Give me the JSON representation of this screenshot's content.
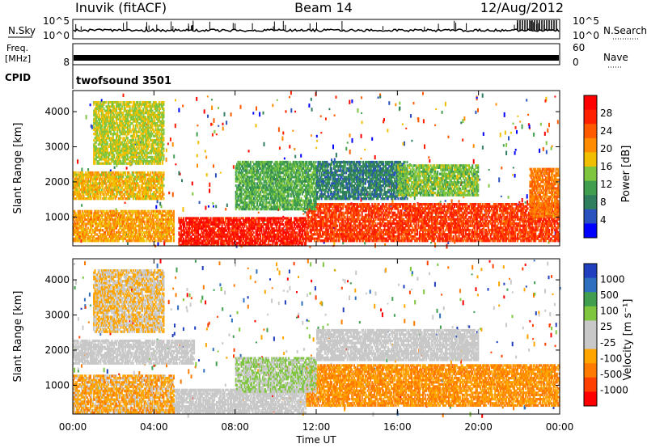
{
  "header": {
    "station": "Inuvik (fitACF)",
    "beam": "Beam 14",
    "date": "12/Aug/2012"
  },
  "top_panels": {
    "nsky_label": "N.Sky",
    "nsky_ticks": [
      "10^5",
      "10^0"
    ],
    "nsearch_label": "N.Search",
    "nsearch_ticks": [
      "10^5",
      "10^0"
    ],
    "freq_label_line1": "Freq.",
    "freq_label_line2": "[MHz]",
    "freq_ticks": [
      "8"
    ],
    "nave_label": "Nave",
    "nave_ticks": [
      "60",
      "0"
    ],
    "cpid_label": "CPID",
    "cpid_value": "twofsound 3501"
  },
  "colors": {
    "power_scale": [
      "#0000ff",
      "#2a52be",
      "#2f7f5f",
      "#3f9f4f",
      "#7fc63f",
      "#f0c000",
      "#ff8c00",
      "#ff5a00",
      "#ff2000",
      "#ff0000"
    ],
    "velocity_scale": [
      "#ff0000",
      "#ff4000",
      "#ff7a00",
      "#ffa500",
      "#c8c8c8",
      "#c8c8c8",
      "#7fc63f",
      "#3f9f4f",
      "#2f6fbf",
      "#1f3fbf"
    ]
  },
  "chart_data": [
    {
      "type": "heatmap",
      "title": "",
      "xlabel": "Time UT",
      "ylabel": "Slant Range [km]",
      "x_ticks": [
        "00:00",
        "04:00",
        "08:00",
        "12:00",
        "16:00",
        "20:00",
        "00:00"
      ],
      "xlim": [
        0,
        24
      ],
      "y_ticks": [
        "1000",
        "2000",
        "3000",
        "4000"
      ],
      "ylim": [
        180,
        4600
      ],
      "colorbar": {
        "label": "Power [dB]",
        "ticks": [
          "4",
          "8",
          "12",
          "16",
          "20",
          "24",
          "28"
        ]
      },
      "regions": [
        {
          "t0": 5.2,
          "t1": 11.5,
          "r0": 180,
          "r1": 1000,
          "value": 28
        },
        {
          "t0": 0.0,
          "t1": 5.0,
          "r0": 300,
          "r1": 1200,
          "value": 20
        },
        {
          "t0": 0.0,
          "t1": 4.5,
          "r0": 1500,
          "r1": 2300,
          "value": 18
        },
        {
          "t0": 11.5,
          "t1": 24.0,
          "r0": 300,
          "r1": 1400,
          "value": 26
        },
        {
          "t0": 8.0,
          "t1": 12.0,
          "r0": 1200,
          "r1": 2600,
          "value": 12
        },
        {
          "t0": 12.0,
          "t1": 16.5,
          "r0": 1500,
          "r1": 2600,
          "value": 8
        },
        {
          "t0": 16.0,
          "t1": 20.0,
          "r0": 1600,
          "r1": 2500,
          "value": 14
        },
        {
          "t0": 22.5,
          "t1": 24.0,
          "r0": 1000,
          "r1": 2400,
          "value": 22
        },
        {
          "t0": 1.0,
          "t1": 4.5,
          "r0": 2500,
          "r1": 4300,
          "value": 16
        }
      ]
    },
    {
      "type": "heatmap",
      "title": "",
      "xlabel": "Time UT",
      "ylabel": "Slant Range [km]",
      "x_ticks": [
        "00:00",
        "04:00",
        "08:00",
        "12:00",
        "16:00",
        "20:00",
        "00:00"
      ],
      "xlim": [
        0,
        24
      ],
      "y_ticks": [
        "1000",
        "2000",
        "3000",
        "4000"
      ],
      "ylim": [
        180,
        4600
      ],
      "colorbar": {
        "label": "Velocity [m s⁻¹]",
        "ticks": [
          "1000",
          "500",
          "100",
          "25",
          "-25",
          "-100",
          "-500",
          "-1000"
        ]
      },
      "regions": [
        {
          "t0": 5.0,
          "t1": 11.5,
          "r0": 200,
          "r1": 900,
          "value": 0
        },
        {
          "t0": 0.0,
          "t1": 5.0,
          "r0": 200,
          "r1": 1300,
          "value": -300
        },
        {
          "t0": 0.0,
          "t1": 6.0,
          "r0": 1600,
          "r1": 2300,
          "value": 0
        },
        {
          "t0": 11.5,
          "t1": 24.0,
          "r0": 400,
          "r1": 1600,
          "value": -400
        },
        {
          "t0": 12.0,
          "t1": 20.0,
          "r0": 1700,
          "r1": 2600,
          "value": 0
        },
        {
          "t0": 8.0,
          "t1": 12.0,
          "r0": 800,
          "r1": 1800,
          "value": 200
        },
        {
          "t0": 1.0,
          "t1": 4.5,
          "r0": 2500,
          "r1": 4300,
          "value": -200
        }
      ]
    }
  ]
}
